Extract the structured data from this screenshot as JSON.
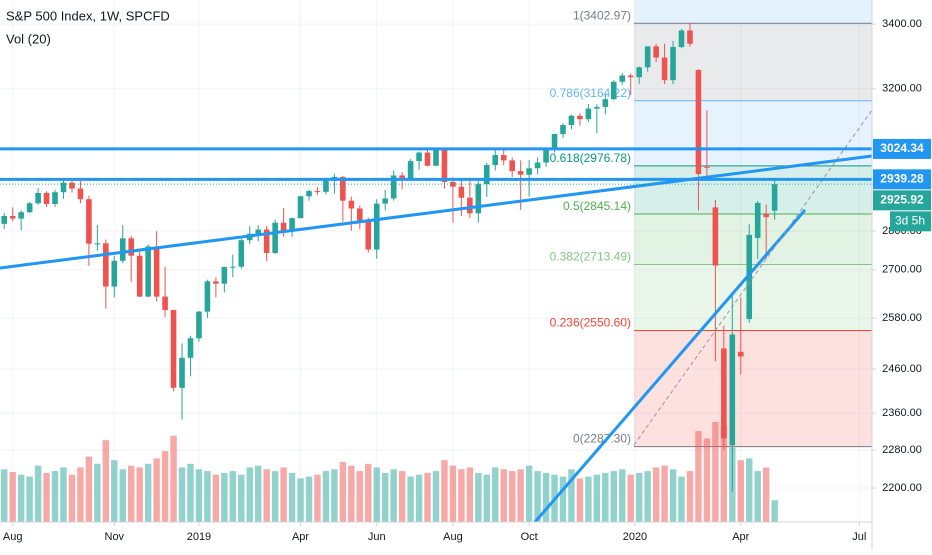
{
  "chart_data": {
    "type": "candlestick",
    "title": "S&P 500 Index, 1W, SPCFD",
    "indicator": "Vol (20)",
    "log_scale": true,
    "grid": true,
    "up_color": "#26a69a",
    "down_color": "#ef5350",
    "ylim": [
      2131,
      3478
    ],
    "yticks": [
      {
        "value": 3400,
        "label": "3400.00"
      },
      {
        "value": 3200,
        "label": "3200.00"
      },
      {
        "value": 2800,
        "label": "2800.00"
      },
      {
        "value": 2700,
        "label": "2700.00"
      },
      {
        "value": 2580,
        "label": "2580.00"
      },
      {
        "value": 2460,
        "label": "2460.00"
      },
      {
        "value": 2360,
        "label": "2360.00"
      },
      {
        "value": 2280,
        "label": "2280.00"
      },
      {
        "value": 2200,
        "label": "2200.00"
      }
    ],
    "xlim": [
      -0.5,
      102.5
    ],
    "xticks": [
      {
        "value": 1,
        "label": "Aug"
      },
      {
        "value": 13,
        "label": "Nov"
      },
      {
        "value": 23,
        "label": "2019"
      },
      {
        "value": 35,
        "label": "Apr"
      },
      {
        "value": 44,
        "label": "Jun"
      },
      {
        "value": 53,
        "label": "Aug"
      },
      {
        "value": 62,
        "label": "Oct"
      },
      {
        "value": 74.5,
        "label": "2020"
      },
      {
        "value": 87,
        "label": "Apr"
      },
      {
        "value": 101,
        "label": "Jul"
      }
    ],
    "candles": [
      [
        2819,
        2848,
        2805,
        2840
      ],
      [
        2840,
        2863,
        2826,
        2833
      ],
      [
        2833,
        2855,
        2802,
        2850
      ],
      [
        2850,
        2877,
        2848,
        2874
      ],
      [
        2874,
        2916,
        2870,
        2902
      ],
      [
        2902,
        2907,
        2864,
        2872
      ],
      [
        2872,
        2911,
        2864,
        2904
      ],
      [
        2904,
        2941,
        2886,
        2930
      ],
      [
        2930,
        2940,
        2903,
        2914
      ],
      [
        2914,
        2940,
        2874,
        2885
      ],
      [
        2885,
        2895,
        2710,
        2767
      ],
      [
        2767,
        2816,
        2749,
        2768
      ],
      [
        2768,
        2778,
        2603,
        2658
      ],
      [
        2658,
        2736,
        2631,
        2723
      ],
      [
        2723,
        2816,
        2717,
        2781
      ],
      [
        2781,
        2788,
        2670,
        2736
      ],
      [
        2736,
        2746,
        2632,
        2633
      ],
      [
        2633,
        2765,
        2631,
        2760
      ],
      [
        2760,
        2800,
        2621,
        2633
      ],
      [
        2633,
        2708,
        2583,
        2600
      ],
      [
        2600,
        2601,
        2409,
        2417
      ],
      [
        2417,
        2520,
        2346,
        2486
      ],
      [
        2486,
        2538,
        2443,
        2532
      ],
      [
        2532,
        2598,
        2524,
        2596
      ],
      [
        2596,
        2675,
        2581,
        2671
      ],
      [
        2671,
        2681,
        2631,
        2665
      ],
      [
        2665,
        2708,
        2643,
        2707
      ],
      [
        2707,
        2739,
        2681,
        2708
      ],
      [
        2708,
        2780,
        2703,
        2776
      ],
      [
        2776,
        2813,
        2766,
        2793
      ],
      [
        2793,
        2816,
        2773,
        2804
      ],
      [
        2804,
        2814,
        2722,
        2743
      ],
      [
        2743,
        2830,
        2741,
        2822
      ],
      [
        2822,
        2861,
        2785,
        2801
      ],
      [
        2801,
        2836,
        2785,
        2834
      ],
      [
        2834,
        2894,
        2834,
        2893
      ],
      [
        2893,
        2911,
        2881,
        2907
      ],
      [
        2907,
        2918,
        2897,
        2905
      ],
      [
        2905,
        2944,
        2898,
        2940
      ],
      [
        2940,
        2955,
        2900,
        2946
      ],
      [
        2946,
        2949,
        2825,
        2881
      ],
      [
        2881,
        2892,
        2801,
        2860
      ],
      [
        2860,
        2868,
        2805,
        2826
      ],
      [
        2826,
        2836,
        2744,
        2752
      ],
      [
        2752,
        2885,
        2728,
        2873
      ],
      [
        2873,
        2910,
        2855,
        2887
      ],
      [
        2887,
        2964,
        2881,
        2950
      ],
      [
        2950,
        2959,
        2912,
        2942
      ],
      [
        2942,
        2996,
        2941,
        2990
      ],
      [
        2990,
        3017,
        2966,
        3014
      ],
      [
        3014,
        3027,
        2975,
        2977
      ],
      [
        2977,
        3028,
        2976,
        3026
      ],
      [
        3026,
        3029,
        2914,
        2932
      ],
      [
        2932,
        2945,
        2822,
        2919
      ],
      [
        2919,
        2940,
        2840,
        2889
      ],
      [
        2889,
        2939,
        2834,
        2847
      ],
      [
        2847,
        2940,
        2822,
        2926
      ],
      [
        2926,
        2985,
        2891,
        2979
      ],
      [
        2979,
        3021,
        2964,
        3007
      ],
      [
        3007,
        3022,
        2978,
        2992
      ],
      [
        2992,
        3000,
        2946,
        2962
      ],
      [
        2962,
        2992,
        2856,
        2952
      ],
      [
        2952,
        2993,
        2892,
        2970
      ],
      [
        2970,
        3000,
        2953,
        2986
      ],
      [
        2986,
        3028,
        2974,
        3023
      ],
      [
        3023,
        3068,
        3014,
        3067
      ],
      [
        3067,
        3098,
        3056,
        3093
      ],
      [
        3093,
        3123,
        3081,
        3120
      ],
      [
        3120,
        3127,
        3091,
        3110
      ],
      [
        3110,
        3154,
        3102,
        3141
      ],
      [
        3141,
        3154,
        3070,
        3146
      ],
      [
        3146,
        3183,
        3124,
        3169
      ],
      [
        3169,
        3226,
        3166,
        3221
      ],
      [
        3221,
        3248,
        3212,
        3240
      ],
      [
        3240,
        3246,
        3181,
        3235
      ],
      [
        3235,
        3268,
        3215,
        3265
      ],
      [
        3265,
        3330,
        3252,
        3330
      ],
      [
        3330,
        3338,
        3281,
        3295
      ],
      [
        3295,
        3338,
        3214,
        3226
      ],
      [
        3226,
        3347,
        3214,
        3328
      ],
      [
        3328,
        3385,
        3324,
        3380
      ],
      [
        3380,
        3402.97,
        3328,
        3338
      ],
      [
        3257,
        3259,
        2855,
        2954
      ],
      [
        2974,
        3136,
        2945,
        2972
      ],
      [
        2863,
        2883,
        2478,
        2711
      ],
      [
        2508,
        2562,
        2281,
        2305
      ],
      [
        2290,
        2641,
        2192,
        2541
      ],
      [
        2500,
        2631,
        2447,
        2489
      ],
      [
        2578,
        2818,
        2569,
        2790
      ],
      [
        2782,
        2880,
        2728,
        2875
      ],
      [
        2845,
        2871,
        2727,
        2837
      ],
      [
        2854,
        2940,
        2830,
        2925.92
      ]
    ],
    "volume": [
      58,
      55,
      52,
      50,
      62,
      54,
      56,
      60,
      52,
      60,
      72,
      64,
      90,
      68,
      58,
      62,
      60,
      64,
      70,
      78,
      95,
      60,
      64,
      58,
      56,
      52,
      54,
      56,
      52,
      60,
      62,
      58,
      56,
      60,
      54,
      48,
      50,
      52,
      56,
      58,
      66,
      62,
      56,
      64,
      60,
      54,
      58,
      56,
      50,
      52,
      54,
      56,
      68,
      62,
      58,
      60,
      54,
      52,
      60,
      58,
      56,
      58,
      62,
      56,
      54,
      52,
      50,
      58,
      48,
      50,
      52,
      54,
      56,
      58,
      52,
      54,
      56,
      60,
      62,
      58,
      50,
      56,
      100,
      92,
      110,
      106,
      82,
      68,
      70,
      56,
      60,
      24
    ],
    "fib": [
      {
        "label": "1(3402.97)",
        "value": 3402.97,
        "color": "#787b86"
      },
      {
        "label": "0.786(3164.22)",
        "value": 3164.22,
        "color": "#64b5f6"
      },
      {
        "label": "0.618(2976.78)",
        "value": 2976.78,
        "color": "#089981"
      },
      {
        "label": "0.5(2845.14)",
        "value": 2845.14,
        "color": "#4caf50"
      },
      {
        "label": "0.382(2713.49)",
        "value": 2713.49,
        "color": "#81c784"
      },
      {
        "label": "0.236(2550.60)",
        "value": 2550.6,
        "color": "#f44336"
      },
      {
        "label": "0(2287.30)",
        "value": 2287.3,
        "color": "#787b86"
      }
    ],
    "price_labels": [
      {
        "value": 3024.34,
        "label": "3024.34",
        "color": "#2196f3"
      },
      {
        "value": 2939.28,
        "label": "2939.28",
        "color": "#2196f3"
      },
      {
        "value": 2925.92,
        "label": "2925.92",
        "color": "#26a69a"
      }
    ],
    "countdown": "3d 5h"
  }
}
